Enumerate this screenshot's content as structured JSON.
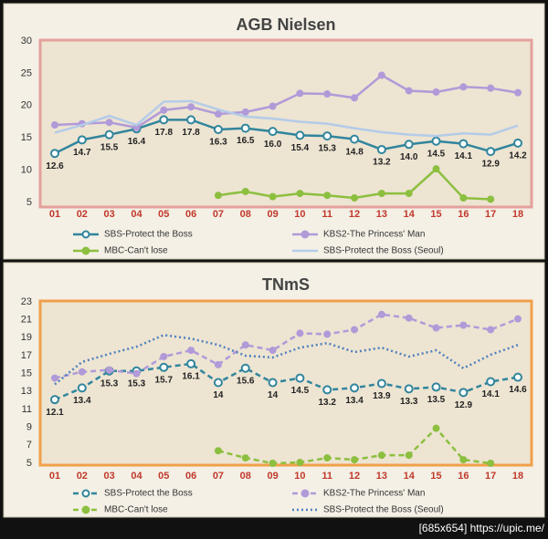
{
  "chart_data": [
    {
      "type": "line",
      "title": "AGB Nielsen",
      "categories": [
        "01",
        "02",
        "03",
        "04",
        "05",
        "06",
        "07",
        "08",
        "09",
        "10",
        "11",
        "12",
        "13",
        "14",
        "15",
        "16",
        "17",
        "18"
      ],
      "ylim": [
        5,
        30
      ],
      "yticks": [
        5,
        10,
        15,
        20,
        25,
        30
      ],
      "grid": false,
      "legend": "bottom",
      "series": [
        {
          "name": "SBS-Protect the Boss",
          "color": "#31859c",
          "style": "solid",
          "marker": "hollow",
          "values": [
            12.6,
            14.7,
            15.5,
            16.4,
            17.8,
            17.8,
            16.3,
            16.5,
            16.0,
            15.4,
            15.3,
            14.8,
            13.2,
            14.0,
            14.5,
            14.1,
            12.9,
            14.2
          ],
          "value_labels": [
            "12.6",
            "14.7",
            "15.5",
            "16.4",
            "17.8",
            "17.8",
            "16.3",
            "16.5",
            "16.0",
            "15.4",
            "15.3",
            "14.8",
            "13.2",
            "14.0",
            "14.5",
            "14.1",
            "12.9",
            "14.2"
          ]
        },
        {
          "name": "KBS2-The Princess' Man",
          "color": "#b19ad8",
          "style": "solid",
          "marker": "filled",
          "values": [
            17.0,
            17.2,
            17.4,
            16.6,
            19.3,
            19.8,
            18.7,
            19.0,
            19.9,
            21.9,
            21.8,
            21.2,
            24.7,
            22.3,
            22.1,
            22.9,
            22.7,
            22.0
          ]
        },
        {
          "name": "MBC-Can't lose",
          "color": "#8cbf3f",
          "style": "solid",
          "marker": "filled",
          "values": [
            null,
            null,
            null,
            null,
            null,
            null,
            6.1,
            6.7,
            5.9,
            6.4,
            6.1,
            5.7,
            6.4,
            6.4,
            10.2,
            5.7,
            5.5,
            null
          ]
        },
        {
          "name": "SBS-Protect the Boss (Seoul)",
          "color": "#b4cbe8",
          "style": "solid",
          "marker": "none",
          "values": [
            15.8,
            17.0,
            18.4,
            17.0,
            20.6,
            20.7,
            19.4,
            18.3,
            18.0,
            17.5,
            17.2,
            16.5,
            15.9,
            15.5,
            15.3,
            15.7,
            15.5,
            16.9
          ]
        }
      ]
    },
    {
      "type": "line",
      "title": "TNmS",
      "categories": [
        "01",
        "02",
        "03",
        "04",
        "05",
        "06",
        "07",
        "08",
        "09",
        "10",
        "11",
        "12",
        "13",
        "14",
        "15",
        "16",
        "17",
        "18"
      ],
      "ylim": [
        5,
        23
      ],
      "yticks": [
        5,
        7,
        9,
        11,
        13,
        15,
        17,
        19,
        21,
        23
      ],
      "grid": false,
      "legend": "bottom",
      "series": [
        {
          "name": "SBS-Protect the Boss",
          "color": "#31859c",
          "style": "dashed",
          "marker": "hollow",
          "values": [
            12.1,
            13.4,
            15.3,
            15.3,
            15.7,
            16.1,
            14.0,
            15.6,
            14.0,
            14.5,
            13.2,
            13.4,
            13.9,
            13.3,
            13.5,
            12.9,
            14.1,
            14.6
          ]
        },
        {
          "name": "KBS2-The Princess' Man",
          "color": "#b19ad8",
          "style": "dashed",
          "marker": "filled",
          "values": [
            14.5,
            15.2,
            15.4,
            15.0,
            16.9,
            17.6,
            16.0,
            18.2,
            17.6,
            19.5,
            19.4,
            19.9,
            21.6,
            21.2,
            20.1,
            20.4,
            19.9,
            21.1
          ]
        },
        {
          "name": "MBC-Can't lose",
          "color": "#8cbf3f",
          "style": "dashed",
          "marker": "filled",
          "values": [
            null,
            null,
            null,
            null,
            null,
            null,
            6.4,
            5.6,
            5.0,
            5.1,
            5.6,
            5.4,
            5.9,
            5.9,
            8.9,
            5.4,
            5.0,
            null
          ]
        },
        {
          "name": "SBS-Protect the Boss (Seoul)",
          "color": "#4f81bd",
          "style": "dotted",
          "marker": "none",
          "values": [
            13.8,
            16.3,
            17.2,
            18.0,
            19.3,
            18.9,
            18.2,
            17.0,
            16.8,
            17.9,
            18.4,
            17.4,
            17.9,
            16.9,
            17.6,
            15.6,
            17.1,
            18.2
          ]
        }
      ]
    }
  ],
  "watermark": "[685x654] https://upic.me/"
}
